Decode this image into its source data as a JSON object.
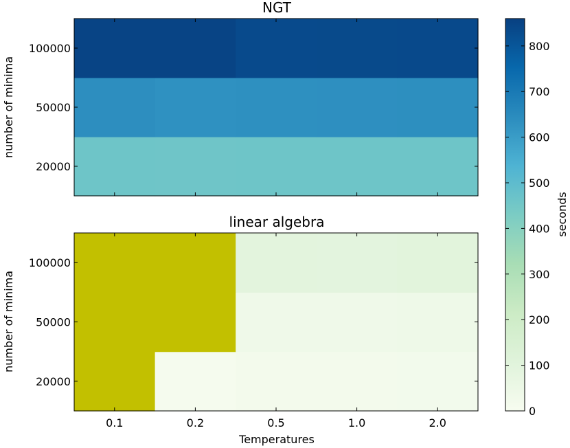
{
  "chart_data": [
    {
      "type": "heatmap",
      "title": "NGT",
      "xlabel": "",
      "ylabel": "number of minima",
      "x_categories": [
        "0.1",
        "0.2",
        "0.5",
        "1.0",
        "2.0"
      ],
      "y_categories": [
        "20000",
        "50000",
        "100000"
      ],
      "values": [
        [
          460,
          458,
          460,
          460,
          462
        ],
        [
          640,
          632,
          635,
          636,
          638
        ],
        [
          850,
          850,
          832,
          834,
          836
        ]
      ],
      "masked_color": "#c2c000",
      "show_x_tick_labels": false
    },
    {
      "type": "heatmap",
      "title": "linear algebra",
      "xlabel": "Temperatures",
      "ylabel": "number of minima",
      "x_categories": [
        "0.1",
        "0.2",
        "0.5",
        "1.0",
        "2.0"
      ],
      "y_categories": [
        "20000",
        "50000",
        "100000"
      ],
      "values": [
        [
          null,
          8,
          20,
          20,
          22
        ],
        [
          null,
          null,
          38,
          38,
          40
        ],
        [
          null,
          null,
          95,
          92,
          100
        ]
      ],
      "masked_color": "#c2c000",
      "show_x_tick_labels": true
    }
  ],
  "colorbar": {
    "label": "seconds",
    "vmin": 0,
    "vmax": 860,
    "ticks": [
      0,
      100,
      200,
      300,
      400,
      500,
      600,
      700,
      800
    ],
    "colormap": [
      "#f7fcf0",
      "#e0f3db",
      "#ccebc5",
      "#a8ddb5",
      "#7bccc4",
      "#4eb3d3",
      "#2b8cbe",
      "#0868ac",
      "#084081"
    ]
  }
}
